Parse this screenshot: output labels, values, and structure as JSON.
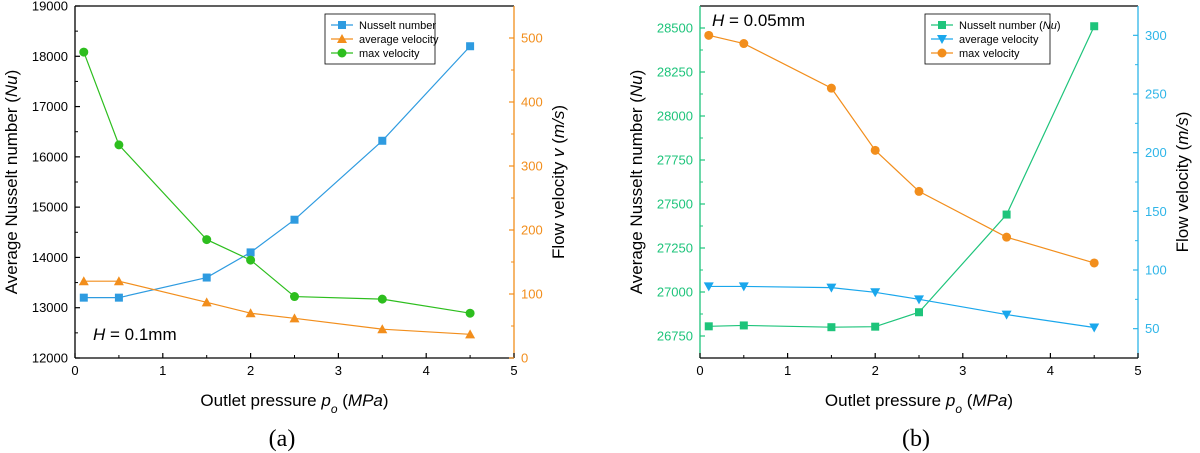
{
  "chart_data": [
    {
      "type": "line",
      "panel": "(a)",
      "annotation": {
        "var": "H",
        "text": " = 0.1mm"
      },
      "xlabel": {
        "text": "Outlet pressure ",
        "sym": "p",
        "sub": "o",
        "unit": "MPa"
      },
      "ylabel_left": {
        "text": "Average Nusselt number ",
        "unit": "Nu"
      },
      "ylabel_right": {
        "text": "Flow velocity ",
        "sym": "v",
        "unit": "m/s"
      },
      "xlim": [
        0,
        5
      ],
      "xticks": [
        0,
        1,
        2,
        3,
        4,
        5
      ],
      "xtick_labels": [
        "0",
        "1",
        "2",
        "3",
        "4",
        "5"
      ],
      "ylim_left": [
        12000,
        19000
      ],
      "yticks_left": [
        12000,
        13000,
        14000,
        15000,
        16000,
        17000,
        18000,
        19000
      ],
      "ytick_labels_left": [
        "12000",
        "13000",
        "14000",
        "15000",
        "16000",
        "17000",
        "18000",
        "19000"
      ],
      "ylim_right": [
        0,
        550
      ],
      "yticks_right": [
        0,
        100,
        200,
        300,
        400,
        500
      ],
      "ytick_labels_right": [
        "0",
        "100",
        "200",
        "300",
        "400",
        "500"
      ],
      "left_axis_color": "#000000",
      "right_axis_color": "#F28E1C",
      "series": [
        {
          "name": "Nusselt number",
          "axis": "left",
          "marker": "square",
          "color": "#2E9BE0",
          "x": [
            0.1,
            0.5,
            1.5,
            2.0,
            2.5,
            3.5,
            4.5
          ],
          "y": [
            13200,
            13200,
            13600,
            14100,
            14750,
            16320,
            18200
          ]
        },
        {
          "name": "average velocity",
          "axis": "right",
          "marker": "triangle-up",
          "color": "#F28E1C",
          "x": [
            0.1,
            0.5,
            1.5,
            2.0,
            2.5,
            3.5,
            4.5
          ],
          "y": [
            120,
            120,
            87,
            70,
            62,
            45,
            37
          ]
        },
        {
          "name": "max velocity",
          "axis": "right",
          "marker": "circle",
          "color": "#2DBE1E",
          "x": [
            0.1,
            0.5,
            1.5,
            2.0,
            2.5,
            3.5,
            4.5
          ],
          "y": [
            478,
            333,
            185,
            153,
            96,
            92,
            70
          ]
        }
      ]
    },
    {
      "type": "line",
      "panel": "(b)",
      "annotation": {
        "var": "H",
        "text": " = 0.05mm"
      },
      "xlabel": {
        "text": "Outlet pressure ",
        "sym": "p",
        "sub": "o",
        "unit": "MPa"
      },
      "ylabel_left": {
        "text": "Average Nusselt number ",
        "unit": "Nu"
      },
      "ylabel_right": {
        "text": "Flow velocity ",
        "unit": "m/s"
      },
      "xlim": [
        0,
        5
      ],
      "xticks": [
        0,
        1,
        2,
        3,
        4,
        5
      ],
      "xtick_labels": [
        "0",
        "1",
        "2",
        "3",
        "4",
        "5"
      ],
      "ylim_left": [
        26625,
        28625
      ],
      "yticks_left": [
        26750,
        27000,
        27250,
        27500,
        27750,
        28000,
        28250,
        28500
      ],
      "ytick_labels_left": [
        "26750",
        "27000",
        "27250",
        "27500",
        "27750",
        "28000",
        "28250",
        "28500"
      ],
      "ylim_right": [
        25,
        325
      ],
      "yticks_right": [
        50,
        100,
        150,
        200,
        250,
        300
      ],
      "ytick_labels_right": [
        "50",
        "100",
        "150",
        "200",
        "250",
        "300"
      ],
      "left_axis_color": "#1EC47B",
      "right_axis_color": "#2EB5E8",
      "series": [
        {
          "name": "Nusselt number (Nu)",
          "label": "Nusselt number (",
          "label_italic": "Nu",
          "label_end": ")",
          "axis": "left",
          "marker": "square",
          "color": "#1EC47B",
          "x": [
            0.1,
            0.5,
            1.5,
            2.0,
            2.5,
            3.5,
            4.5
          ],
          "y": [
            26805,
            26810,
            26800,
            26803,
            26885,
            27440,
            28510
          ]
        },
        {
          "name": "average velocity",
          "axis": "right",
          "marker": "triangle-down",
          "color": "#1AA7EC",
          "x": [
            0.1,
            0.5,
            1.5,
            2.0,
            2.5,
            3.5,
            4.5
          ],
          "y": [
            86,
            86,
            85,
            81,
            75,
            62,
            51
          ]
        },
        {
          "name": "max velocity",
          "axis": "right",
          "marker": "circle",
          "color": "#F28E1C",
          "x": [
            0.1,
            0.5,
            1.5,
            2.0,
            2.5,
            3.5,
            4.5
          ],
          "y": [
            300,
            293,
            255,
            202,
            167,
            128,
            106
          ]
        }
      ]
    }
  ]
}
